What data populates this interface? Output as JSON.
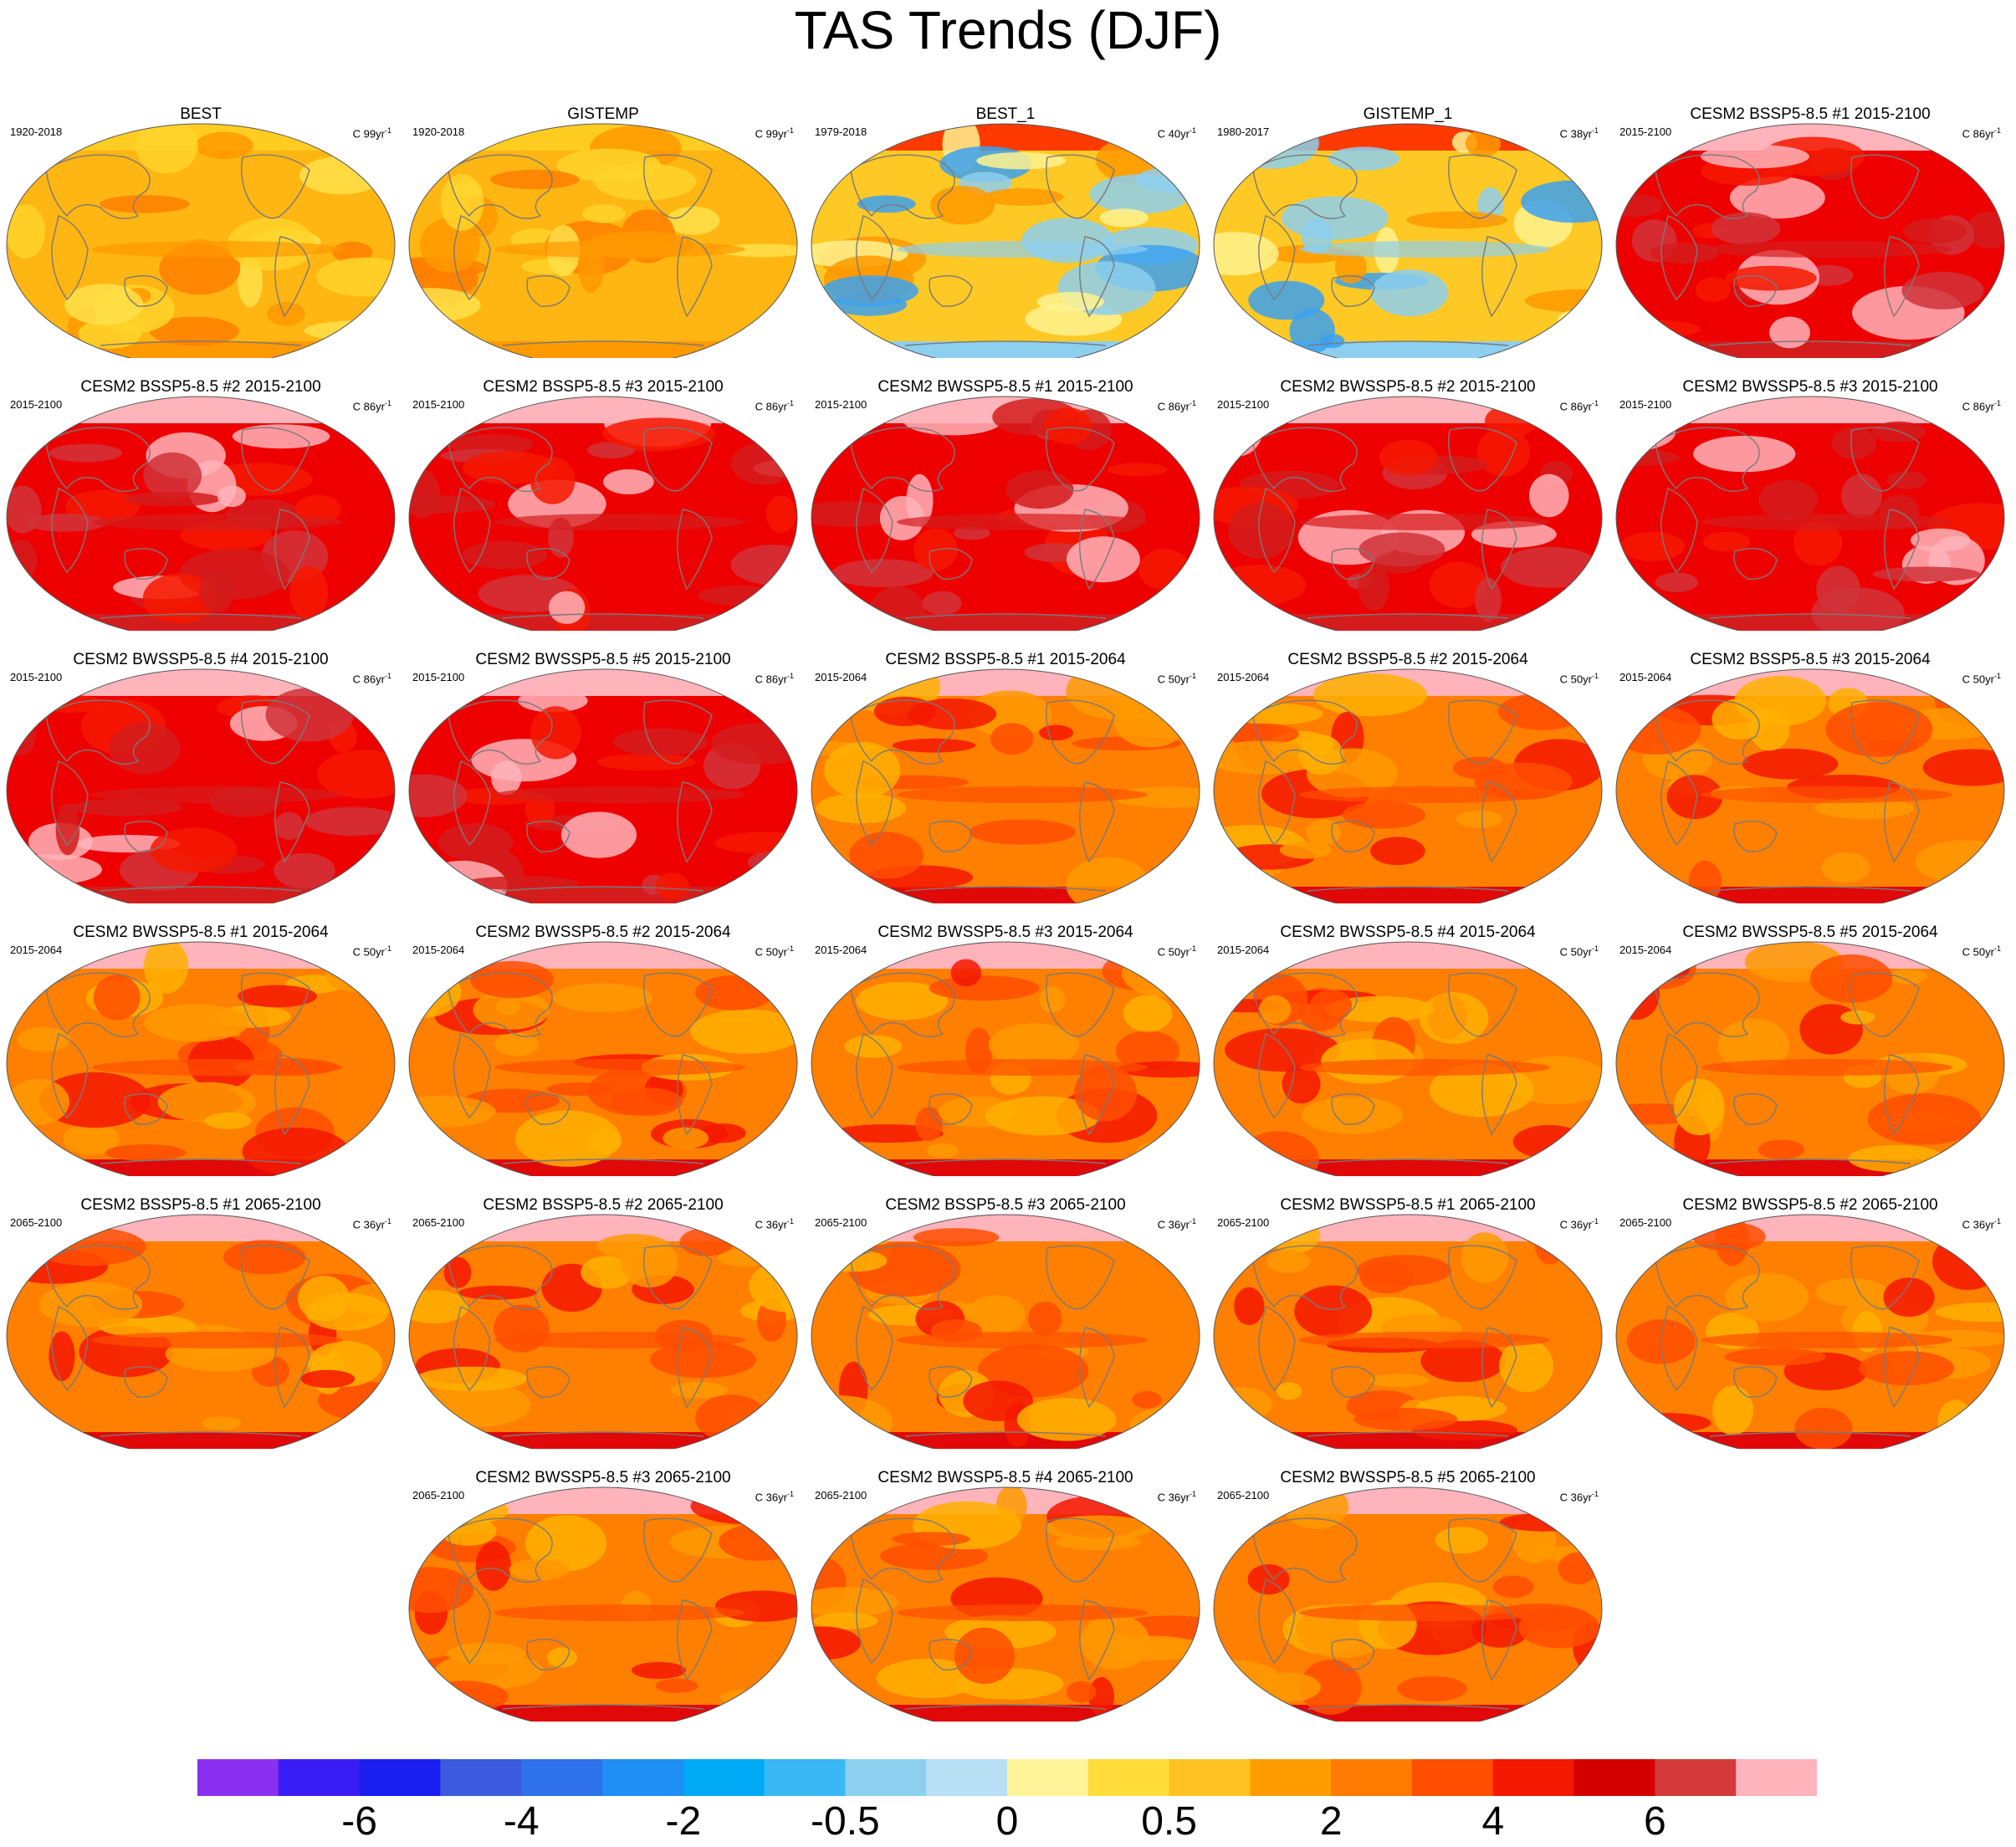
{
  "title": "TAS Trends (DJF)",
  "unit_prefix": "C",
  "unit_suffix": "yr",
  "unit_exponent": "-1",
  "styles": {
    "red": {
      "base": "#ee0000",
      "patches": [
        "#d41c1c",
        "#f41800",
        "#ffb3ba",
        "#d0333a"
      ],
      "polar": "#ffb3ba",
      "band": "#d41c1c"
    },
    "orange": {
      "base": "#ff7f00",
      "patches": [
        "#ff4e00",
        "#ff9900",
        "#f41800",
        "#ffb000"
      ],
      "polar": "#ffb3ba",
      "band": "#e00808"
    },
    "obs": {
      "base": "#ffb612",
      "patches": [
        "#ff9900",
        "#ffd42b",
        "#ff7f00",
        "#ffe04a"
      ],
      "polar": "#ffcc22",
      "band": "#ff9900"
    },
    "obs_recent": {
      "base": "#ffc925",
      "patches": [
        "#8dcfee",
        "#fff28f",
        "#3ba1f0",
        "#ff9900"
      ],
      "polar": "#ff3a00",
      "band": "#8dcfee"
    }
  },
  "panels": [
    {
      "title": "BEST",
      "period": "1920-2018",
      "span": "99",
      "style": "obs"
    },
    {
      "title": "GISTEMP",
      "period": "1920-2018",
      "span": "99",
      "style": "obs"
    },
    {
      "title": "BEST_1",
      "period": "1979-2018",
      "span": "40",
      "style": "obs_recent"
    },
    {
      "title": "GISTEMP_1",
      "period": "1980-2017",
      "span": "38",
      "style": "obs_recent"
    },
    {
      "title": "CESM2 BSSP5-8.5 #1 2015-2100",
      "period": "2015-2100",
      "span": "86",
      "style": "red"
    },
    {
      "title": "CESM2 BSSP5-8.5 #2 2015-2100",
      "period": "2015-2100",
      "span": "86",
      "style": "red"
    },
    {
      "title": "CESM2 BSSP5-8.5 #3 2015-2100",
      "period": "2015-2100",
      "span": "86",
      "style": "red"
    },
    {
      "title": "CESM2 BWSSP5-8.5 #1 2015-2100",
      "period": "2015-2100",
      "span": "86",
      "style": "red"
    },
    {
      "title": "CESM2 BWSSP5-8.5 #2 2015-2100",
      "period": "2015-2100",
      "span": "86",
      "style": "red"
    },
    {
      "title": "CESM2 BWSSP5-8.5 #3 2015-2100",
      "period": "2015-2100",
      "span": "86",
      "style": "red"
    },
    {
      "title": "CESM2 BWSSP5-8.5 #4 2015-2100",
      "period": "2015-2100",
      "span": "86",
      "style": "red"
    },
    {
      "title": "CESM2 BWSSP5-8.5 #5 2015-2100",
      "period": "2015-2100",
      "span": "86",
      "style": "red"
    },
    {
      "title": "CESM2 BSSP5-8.5 #1 2015-2064",
      "period": "2015-2064",
      "span": "50",
      "style": "orange"
    },
    {
      "title": "CESM2 BSSP5-8.5 #2 2015-2064",
      "period": "2015-2064",
      "span": "50",
      "style": "orange"
    },
    {
      "title": "CESM2 BSSP5-8.5 #3 2015-2064",
      "period": "2015-2064",
      "span": "50",
      "style": "orange"
    },
    {
      "title": "CESM2 BWSSP5-8.5 #1 2015-2064",
      "period": "2015-2064",
      "span": "50",
      "style": "orange"
    },
    {
      "title": "CESM2 BWSSP5-8.5 #2 2015-2064",
      "period": "2015-2064",
      "span": "50",
      "style": "orange"
    },
    {
      "title": "CESM2 BWSSP5-8.5 #3 2015-2064",
      "period": "2015-2064",
      "span": "50",
      "style": "orange"
    },
    {
      "title": "CESM2 BWSSP5-8.5 #4 2015-2064",
      "period": "2015-2064",
      "span": "50",
      "style": "orange"
    },
    {
      "title": "CESM2 BWSSP5-8.5 #5 2015-2064",
      "period": "2015-2064",
      "span": "50",
      "style": "orange"
    },
    {
      "title": "CESM2 BSSP5-8.5 #1 2065-2100",
      "period": "2065-2100",
      "span": "36",
      "style": "orange"
    },
    {
      "title": "CESM2 BSSP5-8.5 #2 2065-2100",
      "period": "2065-2100",
      "span": "36",
      "style": "orange"
    },
    {
      "title": "CESM2 BSSP5-8.5 #3 2065-2100",
      "period": "2065-2100",
      "span": "36",
      "style": "orange"
    },
    {
      "title": "CESM2 BWSSP5-8.5 #1 2065-2100",
      "period": "2065-2100",
      "span": "36",
      "style": "orange"
    },
    {
      "title": "CESM2 BWSSP5-8.5 #2 2065-2100",
      "period": "2065-2100",
      "span": "36",
      "style": "orange"
    },
    {
      "title": "CESM2 BWSSP5-8.5 #3 2065-2100",
      "period": "2065-2100",
      "span": "36",
      "style": "orange"
    },
    {
      "title": "CESM2 BWSSP5-8.5 #4 2065-2100",
      "period": "2065-2100",
      "span": "36",
      "style": "orange"
    },
    {
      "title": "CESM2 BWSSP5-8.5 #5 2065-2100",
      "period": "2065-2100",
      "span": "36",
      "style": "orange"
    }
  ],
  "colorbar": {
    "colors": [
      "#8b2ff0",
      "#3a1df5",
      "#1a1ff0",
      "#3c5ae0",
      "#2f72ec",
      "#1e8ef5",
      "#00aaf5",
      "#3ab8f5",
      "#8dcfee",
      "#b8e0f5",
      "#fff49a",
      "#ffdc3a",
      "#ffc222",
      "#ff9d00",
      "#ff7a00",
      "#ff4e00",
      "#f41800",
      "#d40000",
      "#d43a3a",
      "#ffb3ba"
    ],
    "labels": [
      {
        "text": "-6",
        "boundary": 2
      },
      {
        "text": "-4",
        "boundary": 4
      },
      {
        "text": "-2",
        "boundary": 6
      },
      {
        "text": "-0.5",
        "boundary": 8
      },
      {
        "text": "0",
        "boundary": 10
      },
      {
        "text": "0.5",
        "boundary": 12
      },
      {
        "text": "2",
        "boundary": 14
      },
      {
        "text": "4",
        "boundary": 16
      },
      {
        "text": "6",
        "boundary": 18
      }
    ]
  }
}
